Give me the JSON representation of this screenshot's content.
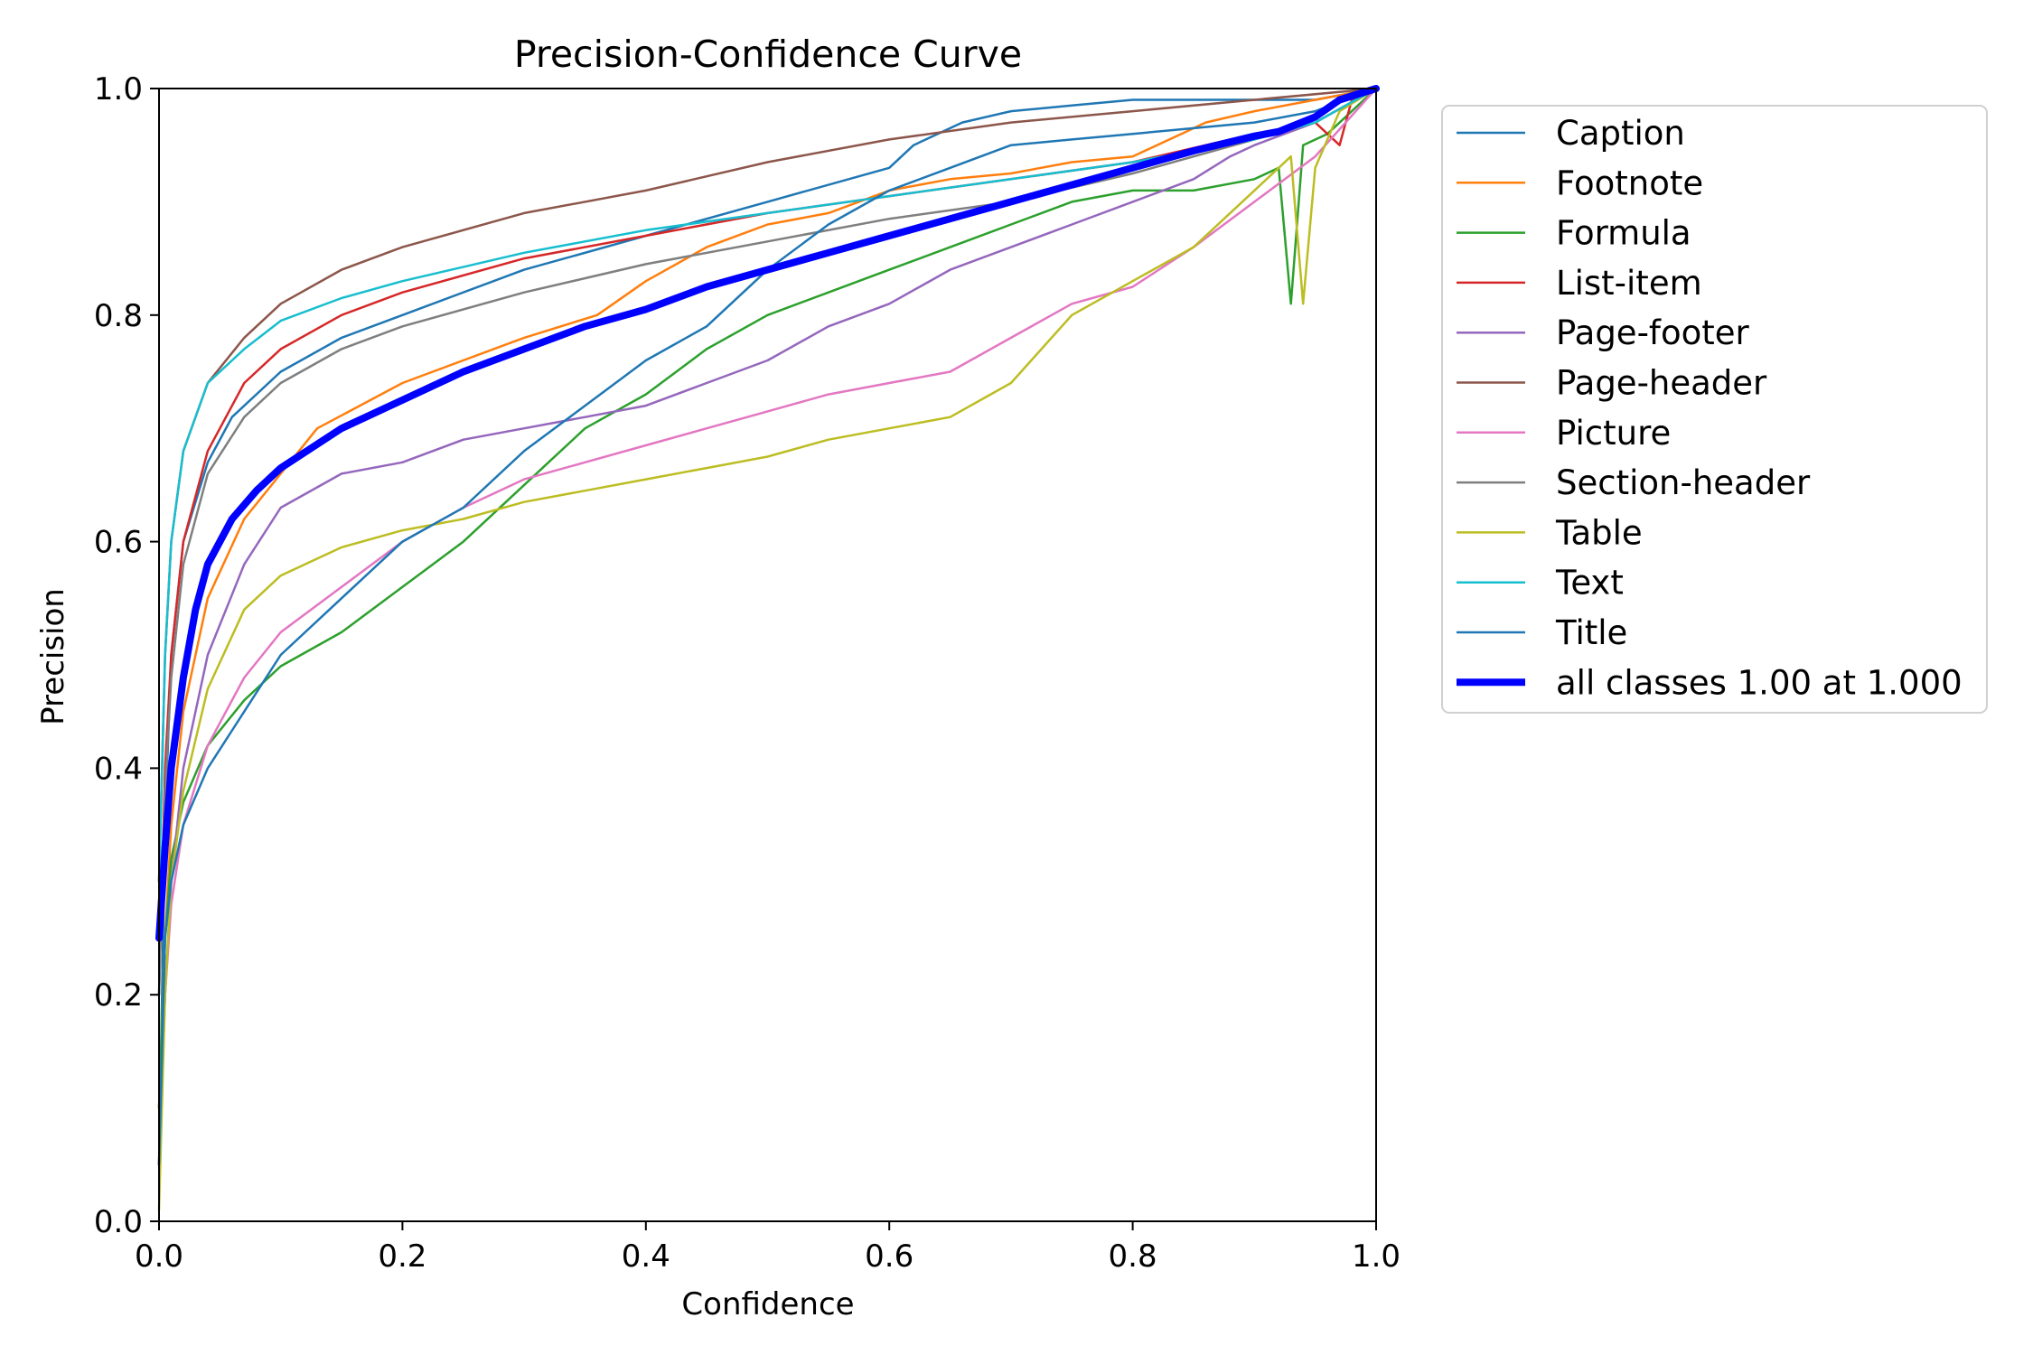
{
  "chart_data": {
    "type": "line",
    "title": "Precision-Confidence Curve",
    "xlabel": "Confidence",
    "ylabel": "Precision",
    "xlim": [
      0,
      1
    ],
    "ylim": [
      0,
      1
    ],
    "xticks": [
      "0.0",
      "0.2",
      "0.4",
      "0.6",
      "0.8",
      "1.0"
    ],
    "yticks": [
      "0.0",
      "0.2",
      "0.4",
      "0.6",
      "0.8",
      "1.0"
    ],
    "grid": false,
    "legend_position": "outside-right",
    "series": [
      {
        "name": "Caption",
        "color": "#1f77b4",
        "points": [
          [
            0,
            0.05
          ],
          [
            0.005,
            0.35
          ],
          [
            0.01,
            0.5
          ],
          [
            0.02,
            0.6
          ],
          [
            0.04,
            0.67
          ],
          [
            0.06,
            0.71
          ],
          [
            0.1,
            0.75
          ],
          [
            0.15,
            0.78
          ],
          [
            0.2,
            0.8
          ],
          [
            0.3,
            0.84
          ],
          [
            0.4,
            0.87
          ],
          [
            0.5,
            0.9
          ],
          [
            0.6,
            0.93
          ],
          [
            0.62,
            0.95
          ],
          [
            0.66,
            0.97
          ],
          [
            0.7,
            0.98
          ],
          [
            0.75,
            0.985
          ],
          [
            0.8,
            0.99
          ],
          [
            0.9,
            0.99
          ],
          [
            0.95,
            0.99
          ],
          [
            1.0,
            1.0
          ]
        ]
      },
      {
        "name": "Footnote",
        "color": "#ff7f0e",
        "points": [
          [
            0,
            0.1
          ],
          [
            0.005,
            0.25
          ],
          [
            0.01,
            0.35
          ],
          [
            0.02,
            0.45
          ],
          [
            0.04,
            0.55
          ],
          [
            0.07,
            0.62
          ],
          [
            0.1,
            0.66
          ],
          [
            0.13,
            0.7
          ],
          [
            0.2,
            0.74
          ],
          [
            0.3,
            0.78
          ],
          [
            0.36,
            0.8
          ],
          [
            0.4,
            0.83
          ],
          [
            0.45,
            0.86
          ],
          [
            0.5,
            0.88
          ],
          [
            0.55,
            0.89
          ],
          [
            0.6,
            0.91
          ],
          [
            0.65,
            0.92
          ],
          [
            0.7,
            0.925
          ],
          [
            0.75,
            0.935
          ],
          [
            0.8,
            0.94
          ],
          [
            0.84,
            0.96
          ],
          [
            0.86,
            0.97
          ],
          [
            0.9,
            0.98
          ],
          [
            0.95,
            0.99
          ],
          [
            1.0,
            1.0
          ]
        ]
      },
      {
        "name": "Formula",
        "color": "#2ca02c",
        "points": [
          [
            0,
            0.1
          ],
          [
            0.005,
            0.25
          ],
          [
            0.01,
            0.32
          ],
          [
            0.02,
            0.37
          ],
          [
            0.04,
            0.42
          ],
          [
            0.07,
            0.46
          ],
          [
            0.1,
            0.49
          ],
          [
            0.15,
            0.52
          ],
          [
            0.2,
            0.56
          ],
          [
            0.25,
            0.6
          ],
          [
            0.3,
            0.65
          ],
          [
            0.35,
            0.7
          ],
          [
            0.4,
            0.73
          ],
          [
            0.45,
            0.77
          ],
          [
            0.5,
            0.8
          ],
          [
            0.55,
            0.82
          ],
          [
            0.6,
            0.84
          ],
          [
            0.65,
            0.86
          ],
          [
            0.7,
            0.88
          ],
          [
            0.75,
            0.9
          ],
          [
            0.8,
            0.91
          ],
          [
            0.85,
            0.91
          ],
          [
            0.9,
            0.92
          ],
          [
            0.92,
            0.93
          ],
          [
            0.93,
            0.81
          ],
          [
            0.94,
            0.95
          ],
          [
            0.96,
            0.96
          ],
          [
            1.0,
            1.0
          ]
        ]
      },
      {
        "name": "List-item",
        "color": "#d62728",
        "points": [
          [
            0,
            0.2
          ],
          [
            0.005,
            0.4
          ],
          [
            0.01,
            0.5
          ],
          [
            0.02,
            0.6
          ],
          [
            0.04,
            0.68
          ],
          [
            0.07,
            0.74
          ],
          [
            0.1,
            0.77
          ],
          [
            0.15,
            0.8
          ],
          [
            0.2,
            0.82
          ],
          [
            0.3,
            0.85
          ],
          [
            0.4,
            0.87
          ],
          [
            0.5,
            0.89
          ],
          [
            0.6,
            0.905
          ],
          [
            0.7,
            0.92
          ],
          [
            0.8,
            0.935
          ],
          [
            0.9,
            0.96
          ],
          [
            0.95,
            0.97
          ],
          [
            0.97,
            0.95
          ],
          [
            0.98,
            0.99
          ],
          [
            1.0,
            1.0
          ]
        ]
      },
      {
        "name": "Page-footer",
        "color": "#9467bd",
        "points": [
          [
            0,
            0.05
          ],
          [
            0.005,
            0.2
          ],
          [
            0.01,
            0.3
          ],
          [
            0.02,
            0.4
          ],
          [
            0.04,
            0.5
          ],
          [
            0.07,
            0.58
          ],
          [
            0.1,
            0.63
          ],
          [
            0.15,
            0.66
          ],
          [
            0.2,
            0.67
          ],
          [
            0.25,
            0.69
          ],
          [
            0.3,
            0.7
          ],
          [
            0.35,
            0.71
          ],
          [
            0.4,
            0.72
          ],
          [
            0.45,
            0.74
          ],
          [
            0.5,
            0.76
          ],
          [
            0.55,
            0.79
          ],
          [
            0.6,
            0.81
          ],
          [
            0.65,
            0.84
          ],
          [
            0.7,
            0.86
          ],
          [
            0.75,
            0.88
          ],
          [
            0.8,
            0.9
          ],
          [
            0.85,
            0.92
          ],
          [
            0.88,
            0.94
          ],
          [
            0.9,
            0.95
          ],
          [
            0.95,
            0.97
          ],
          [
            1.0,
            1.0
          ]
        ]
      },
      {
        "name": "Page-header",
        "color": "#8c564b",
        "points": [
          [
            0,
            0.3
          ],
          [
            0.005,
            0.5
          ],
          [
            0.01,
            0.6
          ],
          [
            0.02,
            0.68
          ],
          [
            0.04,
            0.74
          ],
          [
            0.07,
            0.78
          ],
          [
            0.1,
            0.81
          ],
          [
            0.15,
            0.84
          ],
          [
            0.2,
            0.86
          ],
          [
            0.3,
            0.89
          ],
          [
            0.4,
            0.91
          ],
          [
            0.5,
            0.935
          ],
          [
            0.6,
            0.955
          ],
          [
            0.7,
            0.97
          ],
          [
            0.8,
            0.98
          ],
          [
            0.9,
            0.99
          ],
          [
            1.0,
            1.0
          ]
        ]
      },
      {
        "name": "Picture",
        "color": "#e377c2",
        "points": [
          [
            0,
            0.05
          ],
          [
            0.005,
            0.2
          ],
          [
            0.01,
            0.28
          ],
          [
            0.02,
            0.35
          ],
          [
            0.04,
            0.42
          ],
          [
            0.07,
            0.48
          ],
          [
            0.1,
            0.52
          ],
          [
            0.15,
            0.56
          ],
          [
            0.2,
            0.6
          ],
          [
            0.25,
            0.63
          ],
          [
            0.3,
            0.655
          ],
          [
            0.35,
            0.67
          ],
          [
            0.4,
            0.685
          ],
          [
            0.45,
            0.7
          ],
          [
            0.5,
            0.715
          ],
          [
            0.55,
            0.73
          ],
          [
            0.6,
            0.74
          ],
          [
            0.65,
            0.75
          ],
          [
            0.7,
            0.78
          ],
          [
            0.75,
            0.81
          ],
          [
            0.8,
            0.825
          ],
          [
            0.85,
            0.86
          ],
          [
            0.9,
            0.9
          ],
          [
            0.95,
            0.94
          ],
          [
            1.0,
            1.0
          ]
        ]
      },
      {
        "name": "Section-header",
        "color": "#7f7f7f",
        "points": [
          [
            0,
            0.2
          ],
          [
            0.005,
            0.38
          ],
          [
            0.01,
            0.48
          ],
          [
            0.02,
            0.58
          ],
          [
            0.04,
            0.66
          ],
          [
            0.07,
            0.71
          ],
          [
            0.1,
            0.74
          ],
          [
            0.15,
            0.77
          ],
          [
            0.2,
            0.79
          ],
          [
            0.3,
            0.82
          ],
          [
            0.4,
            0.845
          ],
          [
            0.5,
            0.865
          ],
          [
            0.6,
            0.885
          ],
          [
            0.7,
            0.9
          ],
          [
            0.8,
            0.925
          ],
          [
            0.9,
            0.955
          ],
          [
            0.95,
            0.97
          ],
          [
            1.0,
            1.0
          ]
        ]
      },
      {
        "name": "Table",
        "color": "#bcbd22",
        "points": [
          [
            0,
            0.01
          ],
          [
            0.005,
            0.2
          ],
          [
            0.01,
            0.3
          ],
          [
            0.02,
            0.38
          ],
          [
            0.04,
            0.47
          ],
          [
            0.07,
            0.54
          ],
          [
            0.1,
            0.57
          ],
          [
            0.15,
            0.595
          ],
          [
            0.2,
            0.61
          ],
          [
            0.25,
            0.62
          ],
          [
            0.3,
            0.635
          ],
          [
            0.35,
            0.645
          ],
          [
            0.4,
            0.655
          ],
          [
            0.45,
            0.665
          ],
          [
            0.5,
            0.675
          ],
          [
            0.55,
            0.69
          ],
          [
            0.6,
            0.7
          ],
          [
            0.65,
            0.71
          ],
          [
            0.7,
            0.74
          ],
          [
            0.75,
            0.8
          ],
          [
            0.8,
            0.83
          ],
          [
            0.85,
            0.86
          ],
          [
            0.9,
            0.91
          ],
          [
            0.93,
            0.94
          ],
          [
            0.94,
            0.81
          ],
          [
            0.95,
            0.93
          ],
          [
            0.97,
            0.98
          ],
          [
            1.0,
            1.0
          ]
        ]
      },
      {
        "name": "Text",
        "color": "#17becf",
        "points": [
          [
            0,
            0.3
          ],
          [
            0.005,
            0.5
          ],
          [
            0.01,
            0.6
          ],
          [
            0.02,
            0.68
          ],
          [
            0.04,
            0.74
          ],
          [
            0.07,
            0.77
          ],
          [
            0.1,
            0.795
          ],
          [
            0.15,
            0.815
          ],
          [
            0.2,
            0.83
          ],
          [
            0.3,
            0.855
          ],
          [
            0.4,
            0.875
          ],
          [
            0.5,
            0.89
          ],
          [
            0.6,
            0.905
          ],
          [
            0.7,
            0.92
          ],
          [
            0.8,
            0.935
          ],
          [
            0.9,
            0.955
          ],
          [
            0.95,
            0.97
          ],
          [
            1.0,
            1.0
          ]
        ]
      },
      {
        "name": "Title",
        "color": "#1f77b4",
        "points": [
          [
            0,
            0.05
          ],
          [
            0.005,
            0.25
          ],
          [
            0.01,
            0.3
          ],
          [
            0.02,
            0.35
          ],
          [
            0.04,
            0.4
          ],
          [
            0.07,
            0.45
          ],
          [
            0.1,
            0.5
          ],
          [
            0.15,
            0.55
          ],
          [
            0.2,
            0.6
          ],
          [
            0.25,
            0.63
          ],
          [
            0.3,
            0.68
          ],
          [
            0.35,
            0.72
          ],
          [
            0.4,
            0.76
          ],
          [
            0.45,
            0.79
          ],
          [
            0.5,
            0.84
          ],
          [
            0.55,
            0.88
          ],
          [
            0.6,
            0.91
          ],
          [
            0.65,
            0.93
          ],
          [
            0.7,
            0.95
          ],
          [
            0.75,
            0.955
          ],
          [
            0.8,
            0.96
          ],
          [
            0.85,
            0.965
          ],
          [
            0.9,
            0.97
          ],
          [
            0.95,
            0.98
          ],
          [
            1.0,
            1.0
          ]
        ]
      },
      {
        "name": "all classes 1.00 at 1.000",
        "color": "#0000ff",
        "width": "bold",
        "points": [
          [
            0,
            0.25
          ],
          [
            0.005,
            0.33
          ],
          [
            0.01,
            0.4
          ],
          [
            0.02,
            0.48
          ],
          [
            0.03,
            0.54
          ],
          [
            0.04,
            0.58
          ],
          [
            0.06,
            0.62
          ],
          [
            0.08,
            0.645
          ],
          [
            0.1,
            0.665
          ],
          [
            0.15,
            0.7
          ],
          [
            0.2,
            0.725
          ],
          [
            0.25,
            0.75
          ],
          [
            0.3,
            0.77
          ],
          [
            0.35,
            0.79
          ],
          [
            0.4,
            0.805
          ],
          [
            0.45,
            0.825
          ],
          [
            0.5,
            0.84
          ],
          [
            0.55,
            0.855
          ],
          [
            0.6,
            0.87
          ],
          [
            0.65,
            0.885
          ],
          [
            0.7,
            0.9
          ],
          [
            0.75,
            0.915
          ],
          [
            0.8,
            0.93
          ],
          [
            0.85,
            0.945
          ],
          [
            0.9,
            0.958
          ],
          [
            0.92,
            0.962
          ],
          [
            0.95,
            0.975
          ],
          [
            0.97,
            0.99
          ],
          [
            1.0,
            1.0
          ]
        ]
      }
    ]
  }
}
